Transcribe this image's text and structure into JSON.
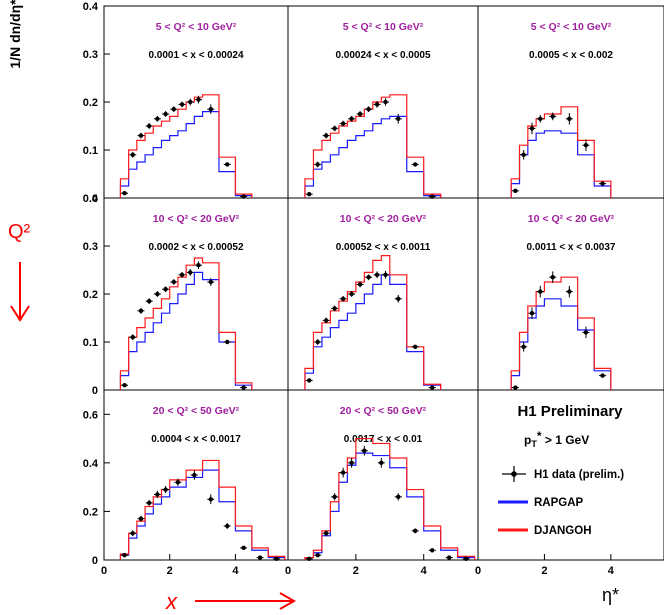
{
  "figure": {
    "y_axis_label": "1/N dn/dη*",
    "x_axis_label": "η*",
    "q2_label": "Q²",
    "x_label": "x",
    "preliminary_label": "H1 Preliminary",
    "pt_cut_label": "p_T* > 1 GeV"
  },
  "legend": [
    {
      "name": "H1 data (prelim.)",
      "color": "#000000",
      "marker": "point-errorbar"
    },
    {
      "name": "RAPGAP",
      "color": "#0000ff",
      "marker": "line"
    },
    {
      "name": "DJANGOH",
      "color": "#ff0000",
      "marker": "line"
    }
  ],
  "colors": {
    "data": "#000000",
    "rapgap": "#1a1aff",
    "djangoh": "#ff1a1a",
    "annotation": "#ff0000",
    "bin_label": "#a020a0"
  },
  "rows": [
    {
      "ylim": [
        0,
        0.4
      ],
      "yticks": [
        {
          "v": 0,
          "label": "0"
        },
        {
          "v": 0.1,
          "label": "0.1"
        },
        {
          "v": 0.2,
          "label": "0.2"
        },
        {
          "v": 0.3,
          "label": "0.3"
        },
        {
          "v": 0.4,
          "label": "0.4"
        }
      ]
    },
    {
      "ylim": [
        0,
        0.4
      ],
      "yticks": [
        {
          "v": 0,
          "label": "0"
        },
        {
          "v": 0.1,
          "label": "0.1"
        },
        {
          "v": 0.2,
          "label": "0.2"
        },
        {
          "v": 0.3,
          "label": "0.3"
        },
        {
          "v": 0.4,
          "label": "0.4"
        }
      ]
    },
    {
      "ylim": [
        0,
        0.7
      ],
      "yticks": [
        {
          "v": 0,
          "label": "0"
        },
        {
          "v": 0.2,
          "label": "0.2"
        },
        {
          "v": 0.4,
          "label": "0.4"
        },
        {
          "v": 0.6,
          "label": "0.6"
        }
      ]
    }
  ],
  "xaxis": {
    "xlim": [
      0,
      5.6
    ],
    "ticks": [
      {
        "v": 0,
        "label": "0"
      },
      {
        "v": 2,
        "label": "2"
      },
      {
        "v": 4,
        "label": "4"
      }
    ]
  },
  "chart_data": [
    {
      "type": "line",
      "row": 0,
      "col": 0,
      "q2_bin": "5 < Q² < 10 GeV²",
      "x_bin": "0.0001 < x < 0.00024",
      "hist_edges": [
        0.5,
        0.75,
        1,
        1.25,
        1.5,
        1.75,
        2,
        2.25,
        2.5,
        2.75,
        3,
        3.5,
        4,
        4.5
      ],
      "series": [
        {
          "name": "RAPGAP",
          "values": [
            0.025,
            0.06,
            0.075,
            0.09,
            0.105,
            0.12,
            0.13,
            0.14,
            0.155,
            0.17,
            0.18,
            0.055,
            0.005
          ]
        },
        {
          "name": "DJANGOH",
          "values": [
            0.04,
            0.1,
            0.12,
            0.135,
            0.15,
            0.16,
            0.17,
            0.185,
            0.2,
            0.21,
            0.215,
            0.085,
            0.008
          ]
        }
      ],
      "data": {
        "x": [
          0.625,
          0.875,
          1.125,
          1.375,
          1.625,
          1.875,
          2.125,
          2.375,
          2.625,
          2.875,
          3.25,
          3.75,
          4.25
        ],
        "y": [
          0.01,
          0.09,
          0.13,
          0.15,
          0.165,
          0.175,
          0.185,
          0.195,
          0.2,
          0.205,
          0.185,
          0.07,
          0.003
        ],
        "err": [
          0.003,
          0.006,
          0.006,
          0.006,
          0.006,
          0.006,
          0.006,
          0.006,
          0.007,
          0.008,
          0.01,
          0.004,
          0.002
        ]
      }
    },
    {
      "type": "line",
      "row": 0,
      "col": 1,
      "q2_bin": "5 < Q² < 10 GeV²",
      "x_bin": "0.00024 < x < 0.0005",
      "hist_edges": [
        0.5,
        0.75,
        1,
        1.25,
        1.5,
        1.75,
        2,
        2.25,
        2.5,
        2.75,
        3,
        3.5,
        4,
        4.5
      ],
      "series": [
        {
          "name": "RAPGAP",
          "values": [
            0.025,
            0.06,
            0.075,
            0.09,
            0.105,
            0.12,
            0.13,
            0.14,
            0.155,
            0.165,
            0.17,
            0.055,
            0.005
          ]
        },
        {
          "name": "DJANGOH",
          "values": [
            0.04,
            0.1,
            0.12,
            0.135,
            0.15,
            0.16,
            0.17,
            0.185,
            0.2,
            0.21,
            0.215,
            0.085,
            0.008
          ]
        }
      ],
      "data": {
        "x": [
          0.625,
          0.875,
          1.125,
          1.375,
          1.625,
          1.875,
          2.125,
          2.375,
          2.625,
          2.875,
          3.25,
          3.75,
          4.25
        ],
        "y": [
          0.008,
          0.07,
          0.13,
          0.145,
          0.155,
          0.165,
          0.175,
          0.185,
          0.195,
          0.2,
          0.165,
          0.07,
          0.003
        ],
        "err": [
          0.003,
          0.006,
          0.006,
          0.006,
          0.006,
          0.006,
          0.006,
          0.006,
          0.007,
          0.008,
          0.01,
          0.004,
          0.002
        ]
      }
    },
    {
      "type": "line",
      "row": 0,
      "col": 2,
      "q2_bin": "5 < Q² < 10 GeV²",
      "x_bin": "0.0005 < x < 0.002",
      "hist_edges": [
        1,
        1.25,
        1.5,
        1.75,
        2,
        2.5,
        3,
        3.5,
        4
      ],
      "series": [
        {
          "name": "RAPGAP",
          "values": [
            0.03,
            0.09,
            0.12,
            0.135,
            0.14,
            0.135,
            0.09,
            0.025
          ]
        },
        {
          "name": "DJANGOH",
          "values": [
            0.04,
            0.11,
            0.15,
            0.165,
            0.175,
            0.19,
            0.12,
            0.035
          ]
        }
      ],
      "data": {
        "x": [
          1.125,
          1.375,
          1.625,
          1.875,
          2.25,
          2.75,
          3.25,
          3.75
        ],
        "y": [
          0.015,
          0.09,
          0.145,
          0.165,
          0.17,
          0.165,
          0.11,
          0.03
        ],
        "err": [
          0.003,
          0.01,
          0.012,
          0.008,
          0.008,
          0.012,
          0.012,
          0.004
        ]
      }
    },
    {
      "type": "line",
      "row": 1,
      "col": 0,
      "q2_bin": "10 < Q² < 20 GeV²",
      "x_bin": "0.0002 < x < 0.00052",
      "hist_edges": [
        0.5,
        0.75,
        1,
        1.25,
        1.5,
        1.75,
        2,
        2.25,
        2.5,
        2.75,
        3,
        3.5,
        4,
        4.5
      ],
      "series": [
        {
          "name": "RAPGAP",
          "values": [
            0.03,
            0.08,
            0.1,
            0.12,
            0.14,
            0.16,
            0.18,
            0.2,
            0.22,
            0.245,
            0.23,
            0.1,
            0.01
          ]
        },
        {
          "name": "DJANGOH",
          "values": [
            0.04,
            0.11,
            0.13,
            0.15,
            0.17,
            0.19,
            0.215,
            0.235,
            0.26,
            0.275,
            0.265,
            0.12,
            0.015
          ]
        }
      ],
      "data": {
        "x": [
          0.625,
          0.875,
          1.125,
          1.375,
          1.625,
          1.875,
          2.125,
          2.375,
          2.625,
          2.875,
          3.25,
          3.75,
          4.25
        ],
        "y": [
          0.01,
          0.11,
          0.165,
          0.185,
          0.2,
          0.21,
          0.225,
          0.24,
          0.245,
          0.26,
          0.225,
          0.1,
          0.005
        ],
        "err": [
          0.003,
          0.006,
          0.006,
          0.006,
          0.006,
          0.006,
          0.006,
          0.006,
          0.007,
          0.008,
          0.008,
          0.004,
          0.002
        ]
      }
    },
    {
      "type": "line",
      "row": 1,
      "col": 1,
      "q2_bin": "10 < Q² < 20 GeV²",
      "x_bin": "0.00052 < x < 0.0011",
      "hist_edges": [
        0.5,
        0.75,
        1,
        1.25,
        1.5,
        1.75,
        2,
        2.25,
        2.5,
        2.75,
        3,
        3.5,
        4,
        4.5
      ],
      "series": [
        {
          "name": "RAPGAP",
          "values": [
            0.035,
            0.09,
            0.11,
            0.13,
            0.145,
            0.16,
            0.18,
            0.2,
            0.22,
            0.24,
            0.22,
            0.08,
            0.01
          ]
        },
        {
          "name": "DJANGOH",
          "values": [
            0.045,
            0.12,
            0.14,
            0.165,
            0.185,
            0.205,
            0.225,
            0.245,
            0.27,
            0.28,
            0.24,
            0.09,
            0.012
          ]
        }
      ],
      "data": {
        "x": [
          0.625,
          0.875,
          1.125,
          1.375,
          1.625,
          1.875,
          2.125,
          2.375,
          2.625,
          2.875,
          3.25,
          3.75,
          4.25
        ],
        "y": [
          0.02,
          0.1,
          0.145,
          0.17,
          0.19,
          0.2,
          0.22,
          0.235,
          0.24,
          0.24,
          0.19,
          0.09,
          0.005
        ],
        "err": [
          0.003,
          0.006,
          0.006,
          0.006,
          0.006,
          0.006,
          0.006,
          0.006,
          0.007,
          0.008,
          0.008,
          0.004,
          0.002
        ]
      }
    },
    {
      "type": "line",
      "row": 1,
      "col": 2,
      "q2_bin": "10 < Q² < 20 GeV²",
      "x_bin": "0.0011 < x < 0.0037",
      "hist_edges": [
        1,
        1.25,
        1.5,
        1.75,
        2,
        2.5,
        3,
        3.5,
        4
      ],
      "series": [
        {
          "name": "RAPGAP",
          "values": [
            0.03,
            0.1,
            0.15,
            0.175,
            0.19,
            0.175,
            0.125,
            0.04
          ]
        },
        {
          "name": "DJANGOH",
          "values": [
            0.04,
            0.12,
            0.175,
            0.205,
            0.225,
            0.235,
            0.15,
            0.045
          ]
        }
      ],
      "data": {
        "x": [
          1.125,
          1.375,
          1.625,
          1.875,
          2.25,
          2.75,
          3.25,
          3.75
        ],
        "y": [
          0.005,
          0.09,
          0.16,
          0.205,
          0.235,
          0.205,
          0.12,
          0.03
        ],
        "err": [
          0.003,
          0.01,
          0.012,
          0.012,
          0.012,
          0.012,
          0.012,
          0.004
        ]
      }
    },
    {
      "type": "line",
      "row": 2,
      "col": 0,
      "q2_bin": "20 < Q² < 50 GeV²",
      "x_bin": "0.0004 < x < 0.0017",
      "hist_edges": [
        0.5,
        0.75,
        1,
        1.25,
        1.5,
        1.75,
        2,
        2.5,
        3,
        3.5,
        4,
        4.5,
        5,
        5.5
      ],
      "series": [
        {
          "name": "RAPGAP",
          "values": [
            0.02,
            0.09,
            0.14,
            0.19,
            0.23,
            0.26,
            0.3,
            0.34,
            0.37,
            0.24,
            0.12,
            0.04,
            0.01
          ]
        },
        {
          "name": "DJANGOH",
          "values": [
            0.025,
            0.11,
            0.16,
            0.22,
            0.26,
            0.29,
            0.33,
            0.37,
            0.41,
            0.3,
            0.14,
            0.05,
            0.015
          ]
        }
      ],
      "data": {
        "x": [
          0.625,
          0.875,
          1.125,
          1.375,
          1.625,
          1.875,
          2.25,
          2.75,
          3.25,
          3.75,
          4.25,
          4.75,
          5.25
        ],
        "y": [
          0.02,
          0.11,
          0.17,
          0.235,
          0.27,
          0.29,
          0.32,
          0.35,
          0.25,
          0.14,
          0.05,
          0.01,
          0.005
        ],
        "err": [
          0.005,
          0.012,
          0.012,
          0.012,
          0.015,
          0.015,
          0.015,
          0.02,
          0.02,
          0.012,
          0.008,
          0.004,
          0.003
        ]
      }
    },
    {
      "type": "line",
      "row": 2,
      "col": 1,
      "q2_bin": "20 < Q² < 50 GeV²",
      "x_bin": "0.0017 < x < 0.01",
      "hist_edges": [
        0.5,
        0.75,
        1,
        1.25,
        1.5,
        1.75,
        2,
        2.5,
        3,
        3.5,
        4,
        4.5,
        5,
        5.5
      ],
      "series": [
        {
          "name": "RAPGAP",
          "values": [
            0.01,
            0.03,
            0.1,
            0.2,
            0.32,
            0.39,
            0.44,
            0.43,
            0.38,
            0.26,
            0.12,
            0.04,
            0.01
          ]
        },
        {
          "name": "DJANGOH",
          "values": [
            0.01,
            0.04,
            0.12,
            0.24,
            0.36,
            0.42,
            0.5,
            0.48,
            0.42,
            0.29,
            0.14,
            0.05,
            0.015
          ]
        }
      ],
      "data": {
        "x": [
          0.625,
          0.875,
          1.125,
          1.375,
          1.625,
          1.875,
          2.25,
          2.75,
          3.25,
          3.75,
          4.25,
          4.75,
          5.25
        ],
        "y": [
          0.005,
          0.02,
          0.11,
          0.26,
          0.36,
          0.4,
          0.45,
          0.4,
          0.26,
          0.12,
          0.04,
          0.01,
          0.005
        ],
        "err": [
          0.003,
          0.005,
          0.012,
          0.015,
          0.02,
          0.02,
          0.02,
          0.02,
          0.015,
          0.01,
          0.005,
          0.003,
          0.002
        ]
      }
    }
  ]
}
